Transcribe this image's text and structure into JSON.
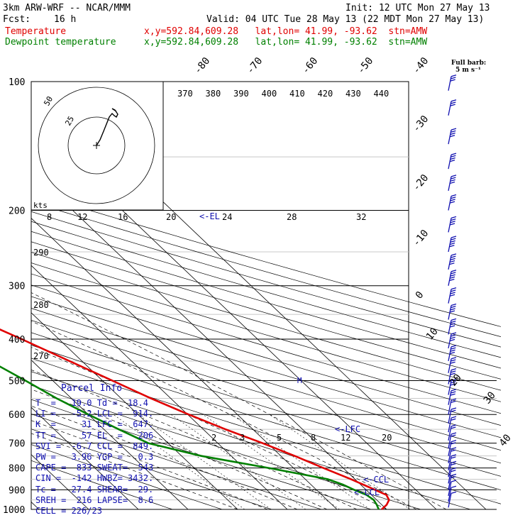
{
  "header": {
    "model": "3km ARW-WRF -- NCAR/MMM",
    "init": "Init: 12 UTC Mon 27 May 13",
    "fcst_label": "Fcst:",
    "fcst_value": "16 h",
    "valid": "Valid: 04 UTC Tue 28 May 13 (22 MDT Mon 27 May 13)",
    "temp_label": "Temperature",
    "temp_info": "x,y=592.84,609.28   lat,lon= 41.99, -93.62  stn=AMW",
    "dew_label": "Dewpoint temperature",
    "dew_info": "x,y=592.84,609.28   lat,lon= 41.99, -93.62  stn=AMW"
  },
  "barb_legend": {
    "line1": "Full barb:",
    "line2": "5 m s⁻¹"
  },
  "parcel": {
    "title": "Parcel Info",
    "rows": [
      "T  =   19.0 Td =  18.4",
      "LI =   -5.2 LCL =  914.",
      "K  =     31 LFC =  647.",
      "TT =     57 EL  =   206",
      "SVI =  -6.7 CCL =  849.",
      "PW =   3.96 YGP =   0.3",
      "CAPE =  833 SWEAT=  543",
      "CIN =  -142 HWBZ= 3432.",
      "Tc =   27.4 SHEAR=  29.",
      "SREH =  216 LAPSE=  8.6",
      "CELL = 226/23"
    ]
  },
  "chart_data": {
    "type": "line",
    "title": "",
    "y_axis": "pressure (hPa)",
    "pressure_labels": [
      "100",
      "200",
      "300",
      "400",
      "500",
      "600",
      "700",
      "800",
      "900",
      "1000"
    ],
    "isotherm_labels": [
      "-80",
      "-70",
      "-60",
      "-50",
      "-40",
      "-30",
      "-20",
      "-10",
      "0",
      "10",
      "20",
      "30",
      "40"
    ],
    "theta_e_labels": [
      "370",
      "380",
      "390",
      "400",
      "410",
      "420",
      "430",
      "440"
    ],
    "theta_labels": [
      "290",
      "280",
      "270"
    ],
    "mixing_ratio_labels": [
      "2",
      "3",
      "5",
      "8",
      "12",
      "20"
    ],
    "hodograph": {
      "unit": "kts",
      "ring_labels": [
        "50",
        "25"
      ],
      "speed_ticks": [
        "8",
        "12",
        "16",
        "20",
        "24",
        "28",
        "32"
      ]
    },
    "annotations": [
      "<-EL",
      "<-LFC",
      "<-CCL",
      "<-LCL",
      "M"
    ],
    "series": [
      {
        "name": "Temperature",
        "color": "#e00000",
        "points": [
          [
            1000,
            19.0
          ],
          [
            975,
            21.0
          ],
          [
            950,
            22.5
          ],
          [
            925,
            23.0
          ],
          [
            900,
            21.8
          ],
          [
            875,
            20.5
          ],
          [
            850,
            19.2
          ],
          [
            800,
            16.0
          ],
          [
            750,
            12.8
          ],
          [
            700,
            9.0
          ],
          [
            650,
            4.5
          ],
          [
            600,
            0.2
          ],
          [
            550,
            -4.0
          ],
          [
            500,
            -8.0
          ],
          [
            450,
            -12.5
          ],
          [
            400,
            -17.5
          ],
          [
            350,
            -23.5
          ],
          [
            300,
            -31.0
          ],
          [
            250,
            -40.0
          ],
          [
            200,
            -51.0
          ],
          [
            175,
            -53.0
          ],
          [
            150,
            -56.5
          ],
          [
            125,
            -59.5
          ],
          [
            110,
            -60.5
          ],
          [
            100,
            -61.0
          ]
        ]
      },
      {
        "name": "Dewpoint temperature",
        "color": "#008000",
        "points": [
          [
            1000,
            18.4
          ],
          [
            975,
            19.0
          ],
          [
            950,
            19.4
          ],
          [
            925,
            19.0
          ],
          [
            900,
            17.6
          ],
          [
            875,
            16.4
          ],
          [
            850,
            14.5
          ],
          [
            800,
            5.0
          ],
          [
            750,
            -6.0
          ],
          [
            700,
            -14.0
          ],
          [
            650,
            -17.0
          ],
          [
            600,
            -20.0
          ],
          [
            550,
            -23.0
          ],
          [
            500,
            -25.5
          ],
          [
            450,
            -28.5
          ],
          [
            400,
            -32.0
          ],
          [
            350,
            -37.5
          ],
          [
            300,
            -43.0
          ],
          [
            250,
            -52.0
          ],
          [
            200,
            -63.0
          ],
          [
            175,
            -66.0
          ],
          [
            150,
            -70.0
          ],
          [
            125,
            -75.0
          ],
          [
            110,
            -79.0
          ],
          [
            100,
            -82.0
          ]
        ]
      }
    ],
    "wind_barbs": [
      [
        990,
        8
      ],
      [
        960,
        10
      ],
      [
        930,
        14
      ],
      [
        900,
        18
      ],
      [
        870,
        22
      ],
      [
        840,
        22
      ],
      [
        810,
        20
      ],
      [
        780,
        18
      ],
      [
        750,
        18
      ],
      [
        720,
        18
      ],
      [
        690,
        18
      ],
      [
        660,
        20
      ],
      [
        630,
        22
      ],
      [
        600,
        24
      ],
      [
        570,
        28
      ],
      [
        540,
        30
      ],
      [
        510,
        32
      ],
      [
        480,
        34
      ],
      [
        450,
        36
      ],
      [
        420,
        38
      ],
      [
        390,
        40
      ],
      [
        360,
        42
      ],
      [
        330,
        44
      ],
      [
        300,
        46
      ],
      [
        275,
        48
      ],
      [
        250,
        46
      ],
      [
        225,
        44
      ],
      [
        200,
        42
      ],
      [
        180,
        40
      ],
      [
        160,
        38
      ],
      [
        140,
        36
      ],
      [
        120,
        34
      ],
      [
        105,
        30
      ]
    ],
    "hodograph_trace": [
      [
        5,
        8
      ],
      [
        10,
        20
      ],
      [
        14,
        30
      ],
      [
        18,
        40
      ],
      [
        22,
        45
      ],
      [
        25,
        42
      ],
      [
        28,
        40
      ],
      [
        30,
        44
      ],
      [
        26,
        50
      ],
      [
        22,
        52
      ],
      [
        28,
        48
      ]
    ]
  }
}
